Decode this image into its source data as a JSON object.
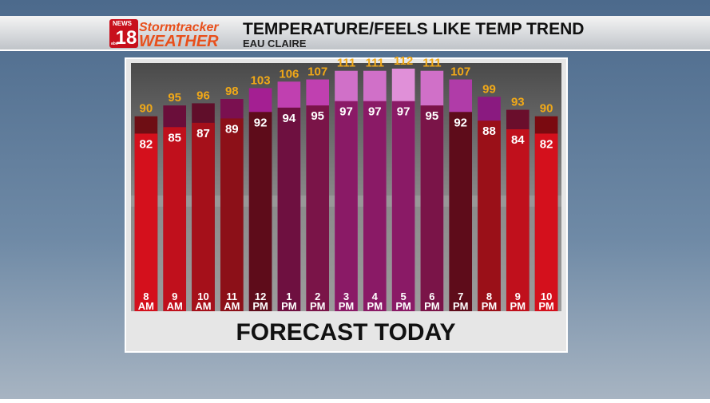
{
  "header": {
    "logo": {
      "network": "NEWS",
      "channel": "18",
      "affiliate": "abc",
      "brand_top": "Stormtracker",
      "brand_bottom": "WEATHER"
    }
  },
  "chart_data": {
    "type": "bar",
    "title": "TEMPERATURE/FEELS LIKE TEMP TREND",
    "subtitle": "EAU CLAIRE",
    "caption": "FORECAST TODAY",
    "categories": [
      "8 AM",
      "9 AM",
      "10 AM",
      "11 AM",
      "12 PM",
      "1 PM",
      "2 PM",
      "3 PM",
      "4 PM",
      "5 PM",
      "6 PM",
      "7 PM",
      "8 PM",
      "9 PM",
      "10 PM"
    ],
    "series": [
      {
        "values": [
          90,
          95,
          96,
          98,
          103,
          106,
          107,
          111,
          111,
          112,
          111,
          107,
          99,
          93,
          90
        ],
        "colors": [
          "#6e0e14",
          "#6a0e3a",
          "#600e2a",
          "#7a1050",
          "#a41f92",
          "#c040b0",
          "#c040b0",
          "#d070c8",
          "#d070c8",
          "#e090d8",
          "#d070c8",
          "#b03ca8",
          "#8a1a80",
          "#6a0e2c",
          "#7a0a10"
        ],
        "label_color": "#f0a818"
      },
      {
        "values": [
          82,
          85,
          87,
          89,
          92,
          94,
          95,
          97,
          97,
          97,
          95,
          92,
          88,
          84,
          82
        ],
        "colors": [
          "#d4101c",
          "#c0101c",
          "#a5101a",
          "#8c1018",
          "#5e0c1a",
          "#6e1040",
          "#7a1448",
          "#8a1a66",
          "#8a1a66",
          "#8a1a66",
          "#7a1448",
          "#5e0c1a",
          "#9a1018",
          "#c0101c",
          "#d4101c"
        ],
        "label_color": "#ffffff"
      }
    ]
  }
}
